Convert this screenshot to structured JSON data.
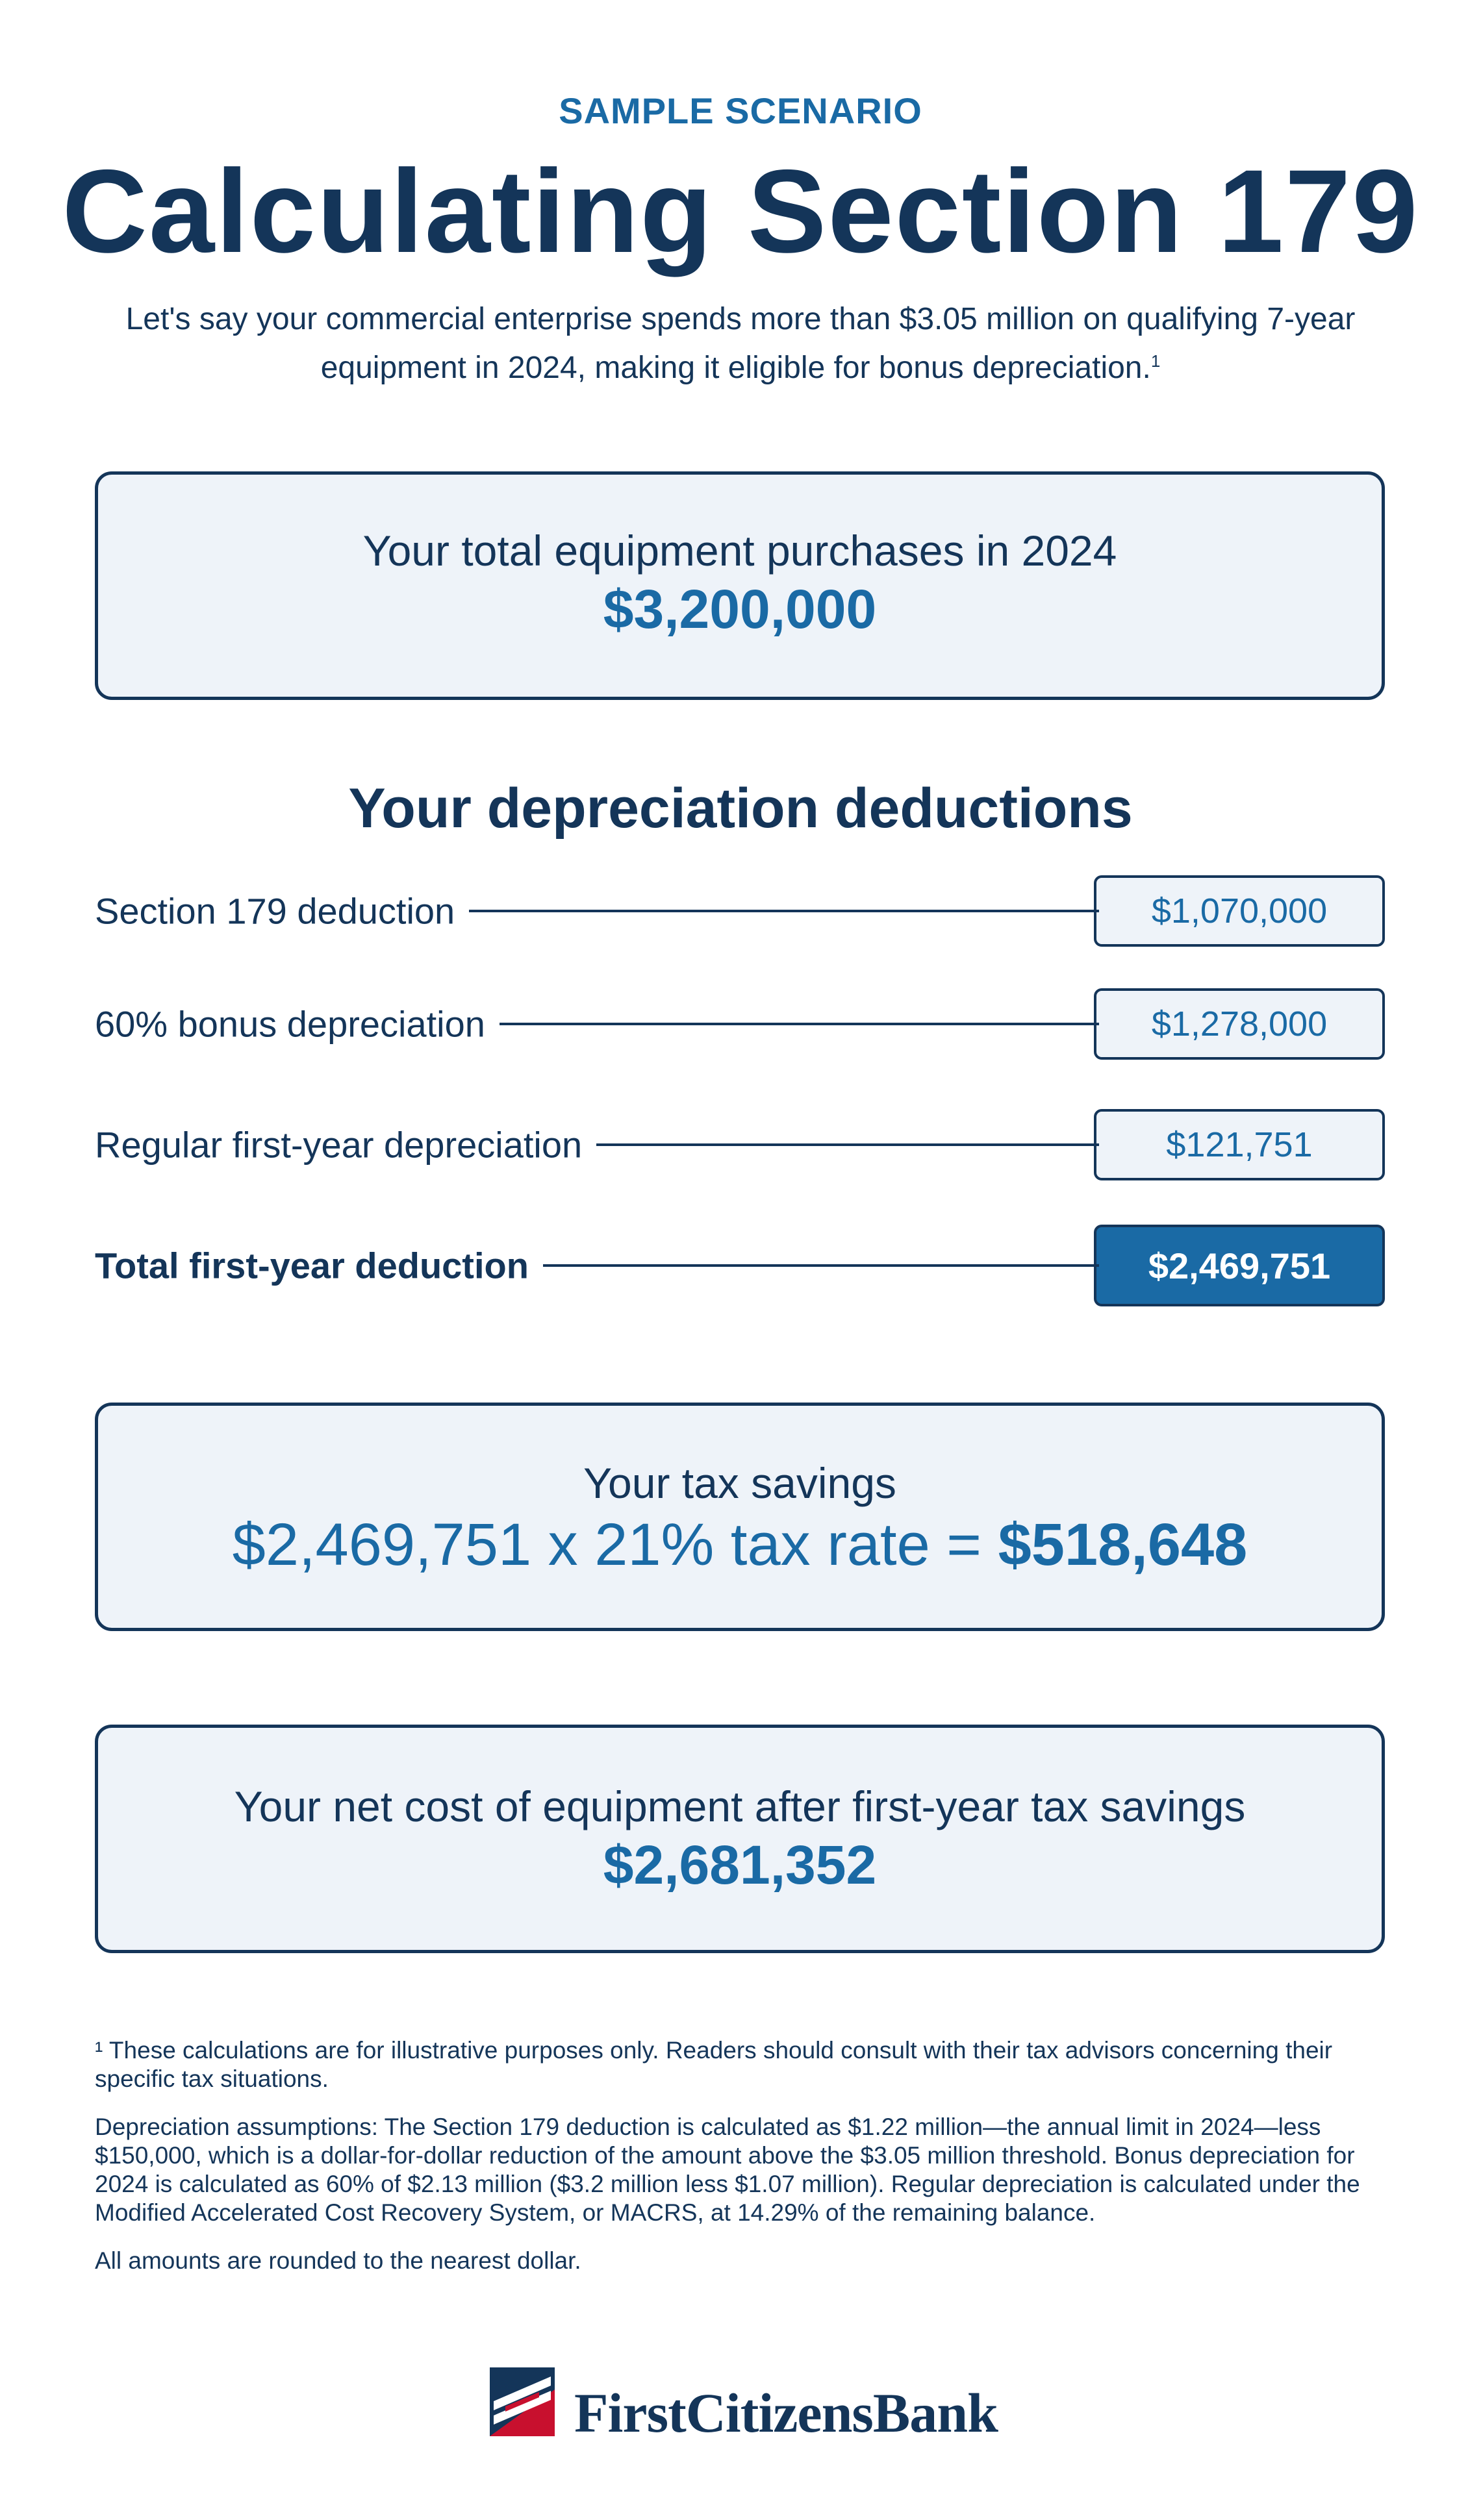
{
  "eyebrow": "SAMPLE SCENARIO",
  "title": "Calculating Section 179",
  "intro": {
    "text": "Let's say your commercial enterprise spends more than $3.05 million on qualifying 7-year equipment in 2024, making it eligible for bonus depreciation.",
    "footnote_mark": "1"
  },
  "purchases": {
    "label": "Your total equipment purchases in 2024",
    "value": "$3,200,000"
  },
  "deductions": {
    "title": "Your depreciation deductions",
    "rows": [
      {
        "label": "Section 179 deduction",
        "value": "$1,070,000"
      },
      {
        "label": "60% bonus depreciation",
        "value": "$1,278,000"
      },
      {
        "label": "Regular first-year depreciation",
        "value": "$121,751"
      },
      {
        "label": "Total first-year deduction",
        "value": "$2,469,751"
      }
    ]
  },
  "tax_savings": {
    "label": "Your tax savings",
    "formula": "$2,469,751 x 21% tax rate = ",
    "result": "$518,648"
  },
  "net_cost": {
    "label": "Your net cost of equipment after first-year tax savings",
    "value": "$2,681,352"
  },
  "notes": [
    "¹ These calculations are for illustrative purposes only. Readers should consult with their tax advisors concerning their specific tax situations.",
    "Depreciation assumptions: The Section 179 deduction is calculated as $1.22 million—the annual limit in 2024—less $150,000, which is a dollar-for-dollar reduction of the amount above the $3.05 million threshold. Bonus depreciation for 2024 is calculated as 60% of $2.13 million ($3.2 million less $1.07 million). Regular depreciation is calculated under the Modified Accelerated Cost Recovery System, or MACRS, at 14.29% of the remaining balance.",
    "All amounts are rounded to the nearest dollar."
  ],
  "logo": {
    "name": "FirstCitizensBank",
    "icon": "first-citizens-flag-logo"
  },
  "colors": {
    "navy": "#143559",
    "blue": "#1a6aa5",
    "box_fill": "#eef3f9",
    "logo_red": "#c8102e"
  }
}
